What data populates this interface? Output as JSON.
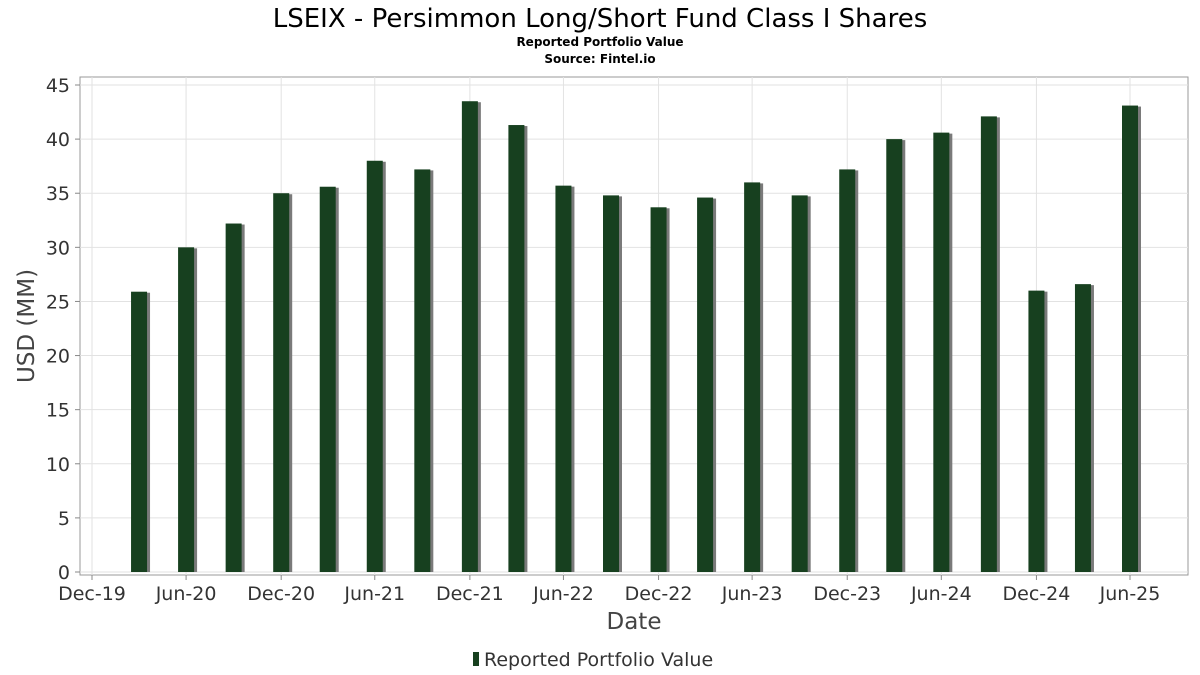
{
  "chart_data": {
    "type": "bar",
    "title": "LSEIX - Persimmon Long/Short Fund Class I Shares",
    "subtitle": "Reported Portfolio Value",
    "source": "Source: Fintel.io",
    "xlabel": "Date",
    "ylabel": "USD (MM)",
    "ylim": [
      0,
      45
    ],
    "yticks": [
      "0",
      "5",
      "10",
      "15",
      "20",
      "25",
      "30",
      "35",
      "40",
      "45"
    ],
    "xticks": [
      "Dec-19",
      "Jun-20",
      "Dec-20",
      "Jun-21",
      "Dec-21",
      "Jun-22",
      "Dec-22",
      "Jun-23",
      "Dec-23",
      "Jun-24",
      "Dec-24",
      "Jun-25"
    ],
    "grid": true,
    "legend_position": "bottom",
    "colors": {
      "bar": "#17401f",
      "shadow": "#7a7a7a"
    },
    "series": [
      {
        "name": "Reported Portfolio Value",
        "x": [
          "2020-03-31",
          "2020-06-30",
          "2020-09-30",
          "2020-12-31",
          "2021-03-31",
          "2021-06-30",
          "2021-09-30",
          "2021-12-31",
          "2022-03-31",
          "2022-06-30",
          "2022-09-30",
          "2022-12-31",
          "2023-03-31",
          "2023-06-30",
          "2023-09-30",
          "2023-12-31",
          "2024-03-31",
          "2024-06-30",
          "2024-09-30",
          "2024-12-31",
          "2025-03-31",
          "2025-06-30"
        ],
        "values": [
          25.9,
          30.0,
          32.2,
          35.0,
          35.6,
          38.0,
          37.2,
          43.5,
          41.3,
          35.7,
          34.8,
          33.7,
          34.6,
          36.0,
          34.8,
          37.2,
          40.0,
          40.6,
          42.1,
          26.0,
          26.6,
          43.1
        ]
      }
    ]
  }
}
